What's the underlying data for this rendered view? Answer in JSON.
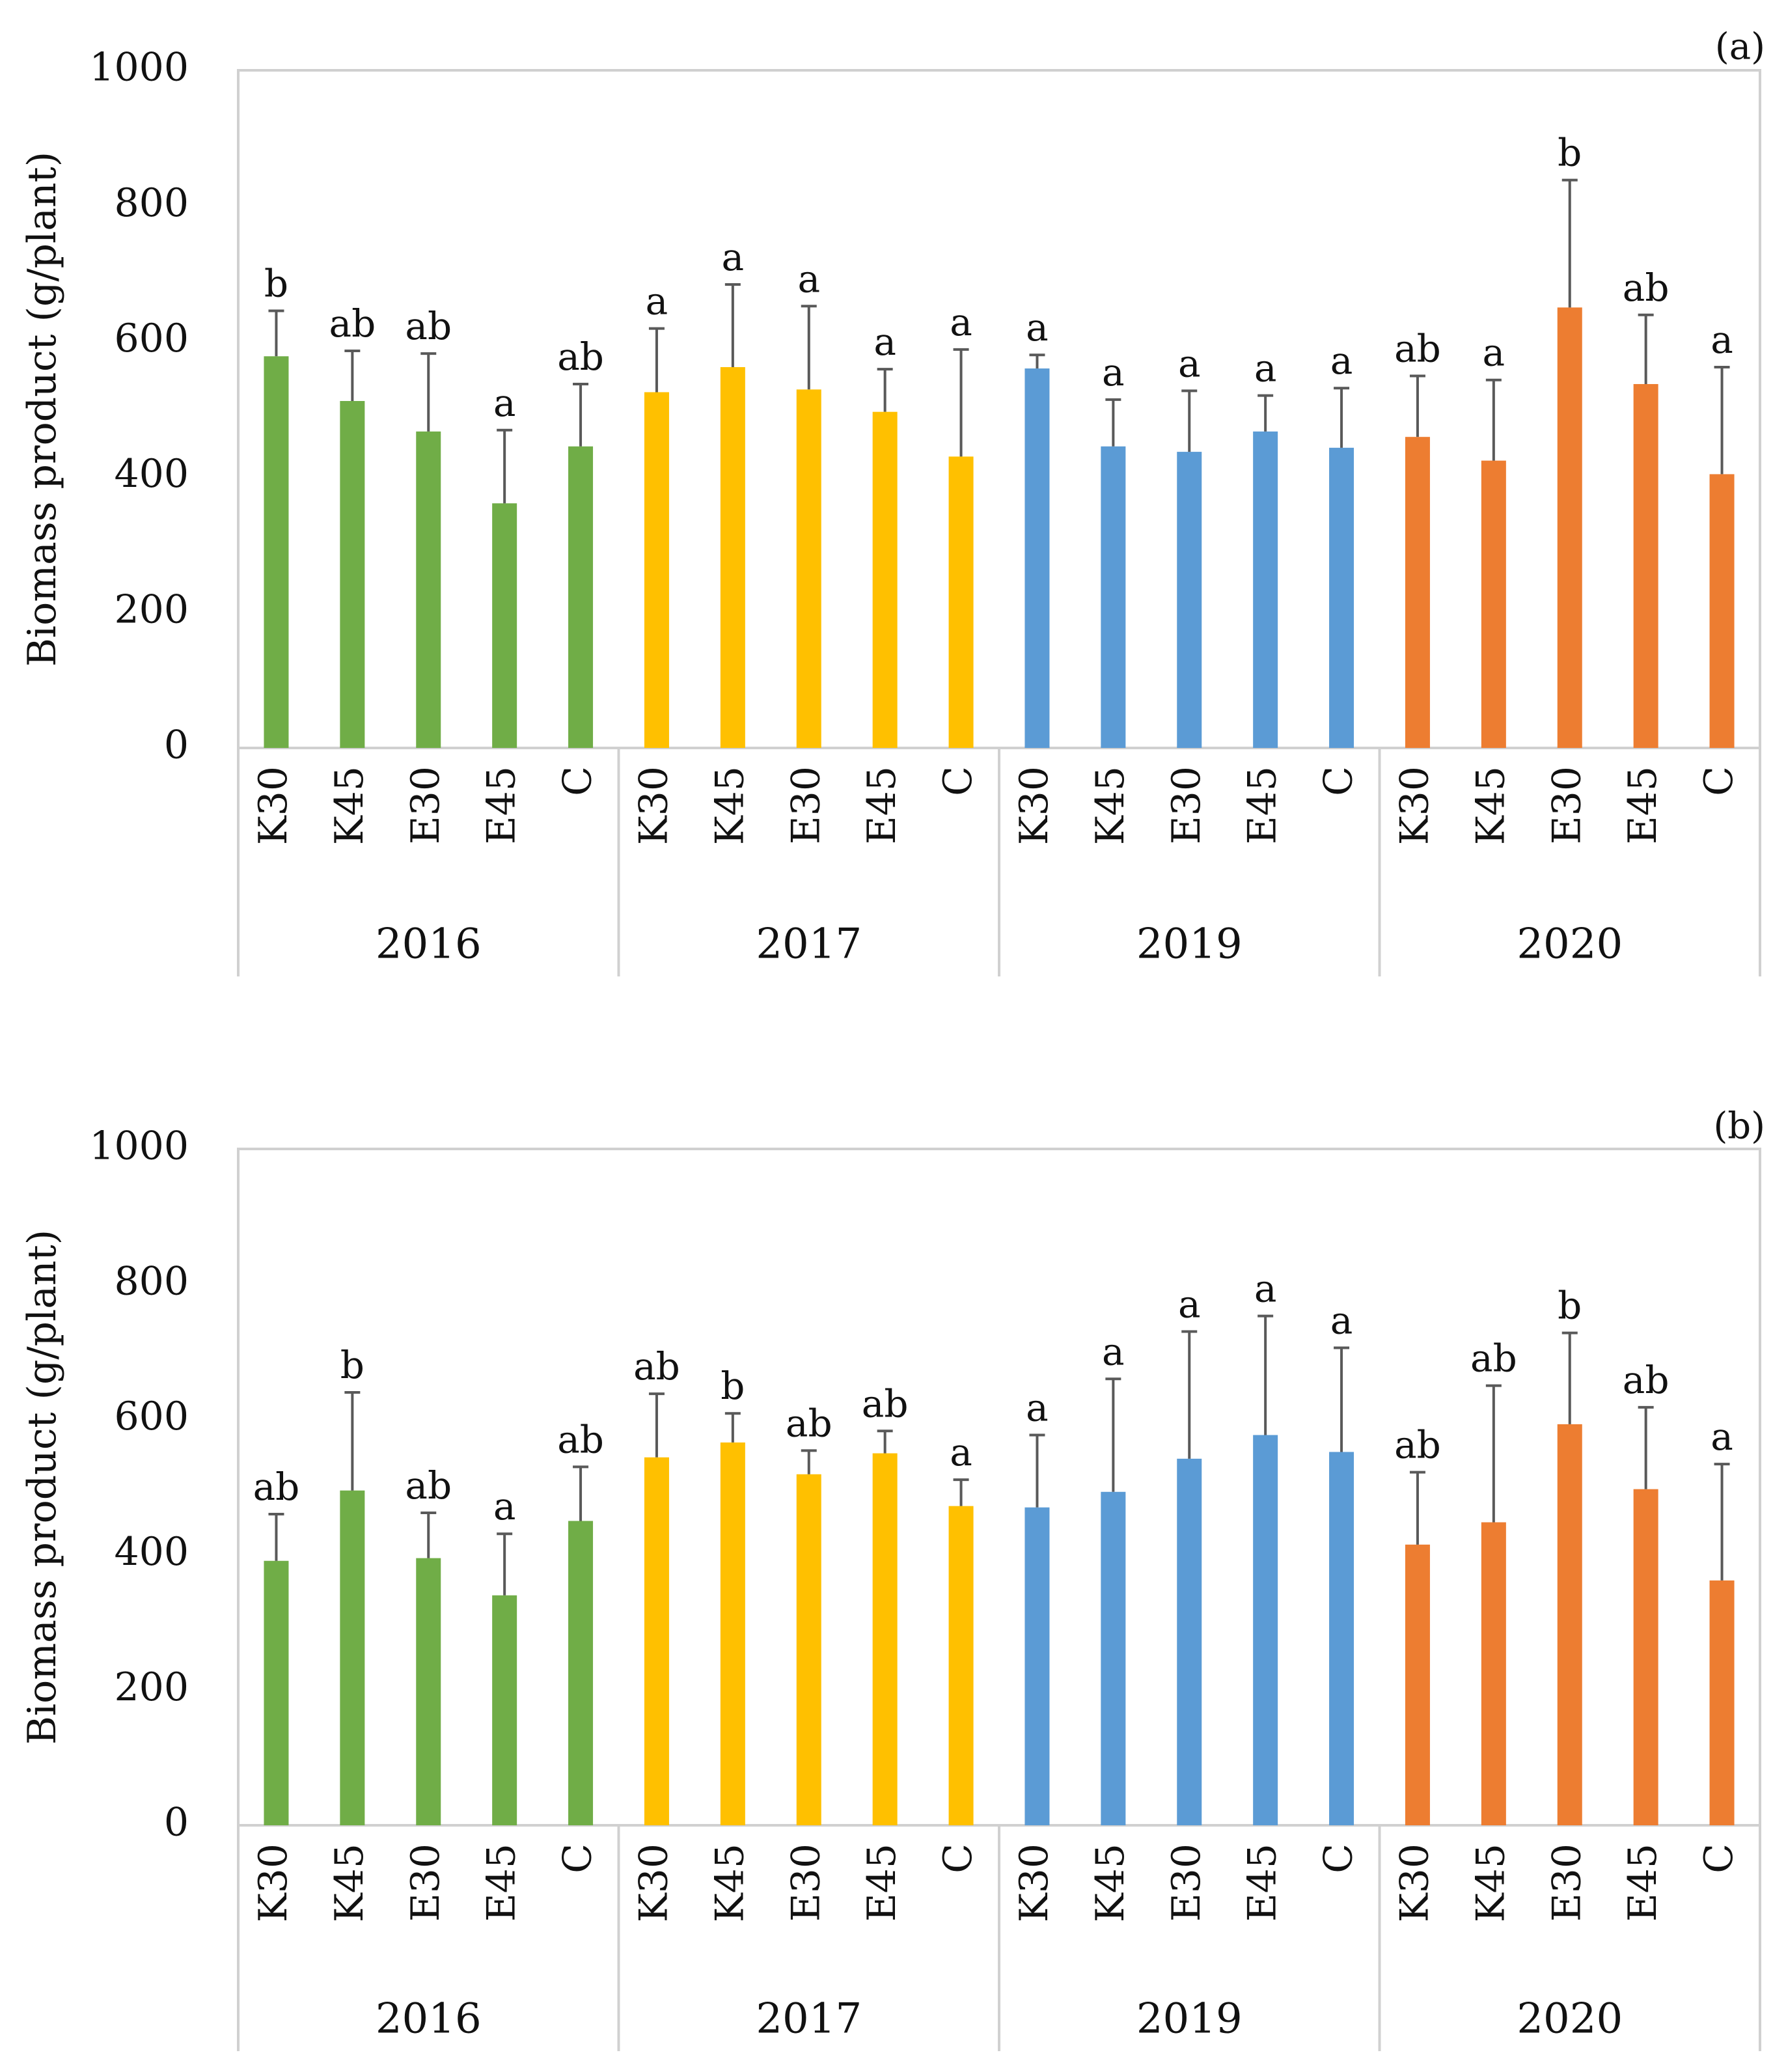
{
  "chart_data": [
    {
      "type": "bar",
      "panel_label": "(a)",
      "ylabel": "Biomass product (g/plant)",
      "ylim": [
        0,
        1000
      ],
      "yticks": [
        0,
        200,
        400,
        600,
        800,
        1000
      ],
      "grid": false,
      "groups": [
        {
          "year": "2016",
          "color": "#70AD47",
          "categories": [
            "K30",
            "K45",
            "E30",
            "E45",
            "C"
          ],
          "values": [
            578,
            512,
            467,
            361,
            445
          ],
          "error_upper": [
            645,
            586,
            582,
            469,
            537
          ],
          "letters": [
            "b",
            "ab",
            "ab",
            "a",
            "ab"
          ]
        },
        {
          "year": "2017",
          "color": "#FFC000",
          "categories": [
            "K30",
            "K45",
            "E30",
            "E45",
            "C"
          ],
          "values": [
            525,
            562,
            529,
            496,
            430
          ],
          "error_upper": [
            619,
            684,
            652,
            559,
            588
          ],
          "letters": [
            "a",
            "a",
            "a",
            "a",
            "a"
          ]
        },
        {
          "year": "2019",
          "color": "#5B9BD5",
          "categories": [
            "K30",
            "K45",
            "E30",
            "E45",
            "C"
          ],
          "values": [
            560,
            445,
            437,
            467,
            443
          ],
          "error_upper": [
            580,
            514,
            527,
            520,
            531
          ],
          "letters": [
            "a",
            "a",
            "a",
            "a",
            "a"
          ]
        },
        {
          "year": "2020",
          "color": "#ED7D31",
          "categories": [
            "K30",
            "K45",
            "E30",
            "E45",
            "C"
          ],
          "values": [
            459,
            424,
            650,
            537,
            404
          ],
          "error_upper": [
            549,
            543,
            838,
            639,
            562
          ],
          "letters": [
            "ab",
            "a",
            "b",
            "ab",
            "a"
          ]
        }
      ]
    },
    {
      "type": "bar",
      "panel_label": "(b)",
      "ylabel": "Biomass product (g/plant)",
      "ylim": [
        0,
        1000
      ],
      "yticks": [
        0,
        200,
        400,
        600,
        800,
        1000
      ],
      "grid": false,
      "groups": [
        {
          "year": "2016",
          "color": "#70AD47",
          "categories": [
            "K30",
            "K45",
            "E30",
            "E45",
            "C"
          ],
          "values": [
            391,
            495,
            395,
            340,
            450
          ],
          "error_upper": [
            460,
            640,
            462,
            431,
            530
          ],
          "letters": [
            "ab",
            "b",
            "ab",
            "a",
            "ab"
          ]
        },
        {
          "year": "2017",
          "color": "#FFC000",
          "categories": [
            "K30",
            "K45",
            "E30",
            "E45",
            "C"
          ],
          "values": [
            544,
            566,
            519,
            550,
            472
          ],
          "error_upper": [
            638,
            609,
            554,
            583,
            511
          ],
          "letters": [
            "ab",
            "b",
            "ab",
            "ab",
            "a"
          ]
        },
        {
          "year": "2019",
          "color": "#5B9BD5",
          "categories": [
            "K30",
            "K45",
            "E30",
            "E45",
            "C"
          ],
          "values": [
            470,
            493,
            542,
            577,
            552
          ],
          "error_upper": [
            577,
            660,
            730,
            753,
            706
          ],
          "letters": [
            "a",
            "a",
            "a",
            "a",
            "a"
          ]
        },
        {
          "year": "2020",
          "color": "#ED7D31",
          "categories": [
            "K30",
            "K45",
            "E30",
            "E45",
            "C"
          ],
          "values": [
            415,
            448,
            593,
            497,
            362
          ],
          "error_upper": [
            522,
            650,
            728,
            618,
            534
          ],
          "letters": [
            "ab",
            "ab",
            "b",
            "ab",
            "a"
          ]
        }
      ]
    }
  ]
}
